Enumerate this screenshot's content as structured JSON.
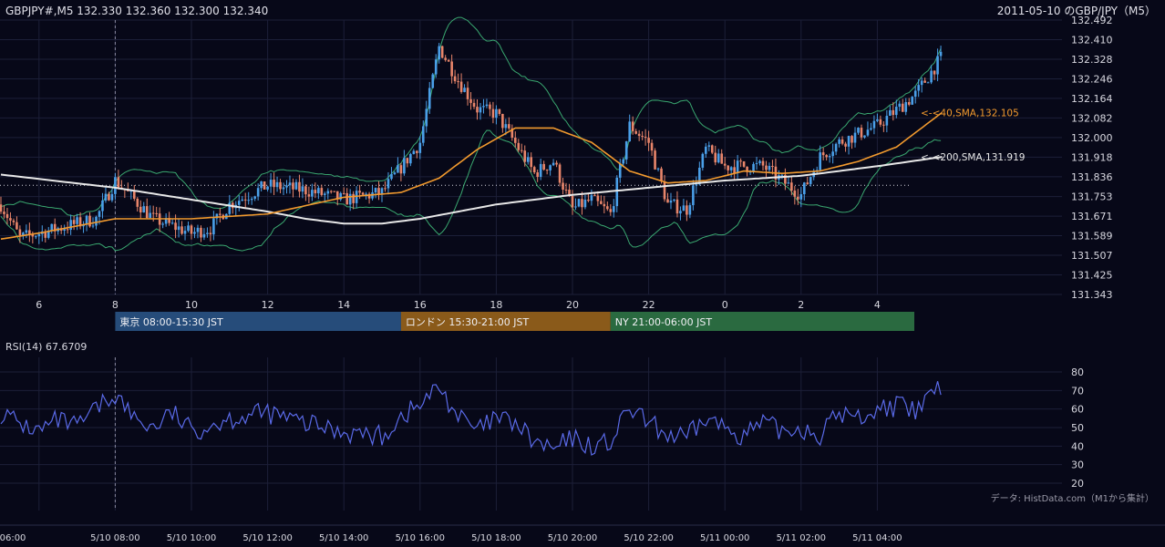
{
  "header": {
    "symbol_line": "GBPJPY#,M5 132.330 132.360 132.300 132.340",
    "title": "2011-05-10 のGBP/JPY（M5）"
  },
  "colors": {
    "background": "#070818",
    "candle_up": "#4a9fe8",
    "candle_down": "#e8856a",
    "sma40": "#f29a2e",
    "sma200": "#e8e8e8",
    "bollinger": "#3aa870",
    "rsi": "#5a6ae8",
    "grid": "#1c1f38",
    "tokyo": "#264c7a",
    "london": "#8a5a1a",
    "ny": "#2a6a40"
  },
  "sessions": [
    {
      "label": "東京 08:00-15:30 JST",
      "color": "#264c7a"
    },
    {
      "label": "ロンドン 15:30-21:00 JST",
      "color": "#8a5a1a"
    },
    {
      "label": "NY 21:00-06:00 JST",
      "color": "#2a6a40"
    }
  ],
  "source_note": "データ: HistData.com（M1から集計）",
  "chart_data": [
    {
      "type": "candlestick",
      "y_ticks": [
        "132.492",
        "132.410",
        "132.328",
        "132.246",
        "132.164",
        "132.082",
        "132.000",
        "131.918",
        "131.836",
        "131.753",
        "131.671",
        "131.589",
        "131.507",
        "131.425",
        "131.343"
      ],
      "ylim": [
        131.343,
        132.492
      ],
      "x_ticks": [
        "6",
        "8",
        "10",
        "12",
        "14",
        "16",
        "18",
        "20",
        "22",
        "0",
        "2",
        "4"
      ],
      "grid": true,
      "annotations": [
        {
          "text": "<-<40,SMA,132.105",
          "value": 132.105
        },
        {
          "text": "<-<200,SMA,131.919",
          "value": 131.919
        }
      ],
      "price_anchors_hours": [
        5,
        5.5,
        6.5,
        7.5,
        8,
        8.5,
        9,
        10,
        10.5,
        11,
        12,
        13,
        14,
        15,
        16,
        16.5,
        17,
        17.5,
        18,
        19,
        19.5,
        20,
        20.5,
        21,
        21.5,
        22,
        22.5,
        23,
        23.5,
        24,
        25,
        26,
        26.5,
        27,
        28,
        29,
        29.7
      ],
      "price_anchors": [
        131.72,
        131.58,
        131.62,
        131.66,
        131.82,
        131.74,
        131.66,
        131.6,
        131.62,
        131.72,
        131.8,
        131.78,
        131.74,
        131.77,
        131.98,
        132.38,
        132.24,
        132.12,
        132.1,
        131.85,
        131.9,
        131.7,
        131.74,
        131.68,
        132.05,
        131.98,
        131.72,
        131.7,
        131.95,
        131.88,
        131.88,
        131.76,
        131.92,
        131.98,
        132.05,
        132.18,
        132.34
      ],
      "sma40_hours": [
        5,
        6,
        8,
        10,
        12,
        14,
        15.5,
        16.5,
        17.5,
        18.5,
        19.5,
        20.5,
        21.5,
        22.5,
        23.5,
        24.5,
        25.5,
        26.5,
        27.5,
        28.5,
        29.7
      ],
      "sma40": [
        131.575,
        131.6,
        131.66,
        131.66,
        131.68,
        131.75,
        131.77,
        131.83,
        131.95,
        132.04,
        132.04,
        131.98,
        131.86,
        131.81,
        131.82,
        131.86,
        131.85,
        131.86,
        131.9,
        131.96,
        132.105
      ],
      "sma200_hours": [
        5,
        8,
        10,
        12,
        13,
        14,
        15,
        16,
        18,
        20,
        22,
        24,
        26,
        28,
        29.7
      ],
      "sma200": [
        131.845,
        131.79,
        131.74,
        131.69,
        131.66,
        131.64,
        131.64,
        131.66,
        131.72,
        131.76,
        131.79,
        131.82,
        131.84,
        131.88,
        131.919
      ],
      "dotted_level": 131.8
    },
    {
      "type": "line",
      "title": "RSI(14) 67.6709",
      "y_ticks": [
        "80",
        "70",
        "60",
        "50",
        "40",
        "30",
        "20"
      ],
      "ylim": [
        20,
        80
      ],
      "x_ticks": [
        "06:00",
        "5/10 08:00",
        "5/10 10:00",
        "5/10 12:00",
        "5/10 14:00",
        "5/10 16:00",
        "5/10 18:00",
        "5/10 20:00",
        "5/10 22:00",
        "5/11 00:00",
        "5/11 02:00",
        "5/11 04:00"
      ],
      "rsi_anchors_hours": [
        5,
        5.5,
        6,
        6.5,
        7,
        7.5,
        8,
        8.5,
        9,
        9.5,
        10,
        11,
        12,
        13,
        14,
        15,
        15.5,
        16,
        16.5,
        17,
        17.5,
        18,
        18.5,
        19,
        19.5,
        20,
        20.5,
        21,
        21.5,
        22,
        22.5,
        23,
        23.5,
        24,
        24.5,
        25,
        25.5,
        26,
        26.5,
        27,
        27.5,
        28,
        28.5,
        29,
        29.5,
        29.7
      ],
      "rsi_anchors": [
        58,
        52,
        48,
        54,
        50,
        60,
        68,
        55,
        50,
        58,
        48,
        55,
        58,
        52,
        48,
        45,
        56,
        62,
        72,
        56,
        48,
        55,
        52,
        42,
        38,
        44,
        40,
        42,
        60,
        52,
        46,
        44,
        55,
        50,
        46,
        52,
        48,
        50,
        46,
        58,
        55,
        60,
        62,
        58,
        70,
        67.67
      ]
    }
  ]
}
